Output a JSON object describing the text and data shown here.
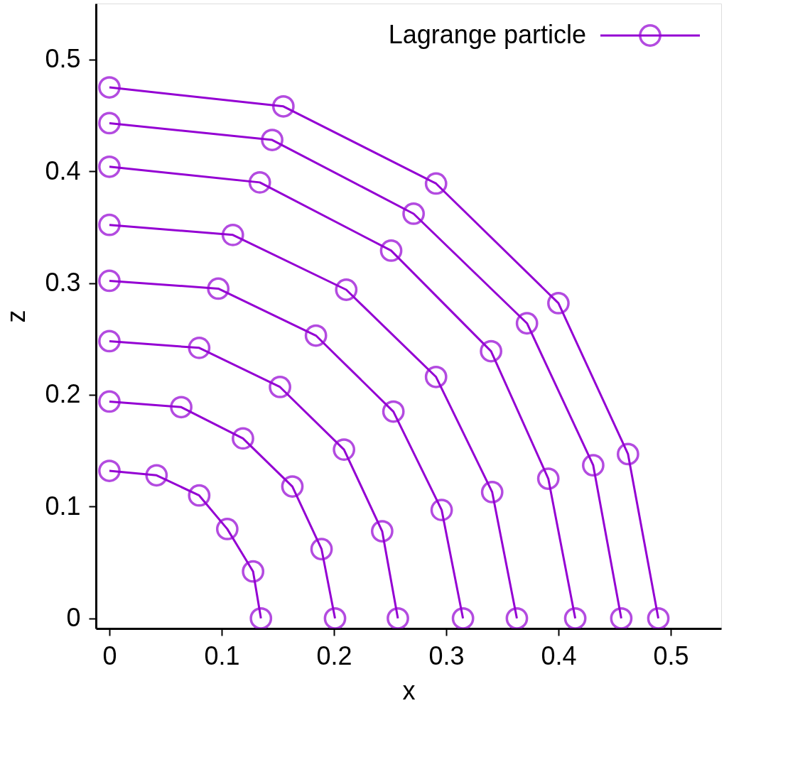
{
  "chart_data": {
    "type": "line",
    "xlabel": "x",
    "ylabel": "z",
    "xlim": [
      -0.012,
      0.545
    ],
    "ylim": [
      -0.009,
      0.55
    ],
    "xticks": [
      0,
      0.1,
      0.2,
      0.3,
      0.4,
      0.5
    ],
    "yticks": [
      0,
      0.1,
      0.2,
      0.3,
      0.4,
      0.5
    ],
    "grid": false,
    "legend": "top right",
    "marker": "circle",
    "line_style": "solid",
    "series": [
      {
        "name": "Lagrange particle",
        "color": "#9400d3",
        "x": [
          0,
          0.042,
          0.08,
          0.105,
          0.128,
          0.135
        ],
        "values": [
          0.132,
          0.128,
          0.11,
          0.08,
          0.042,
          0
        ]
      },
      {
        "color": "#9400d3",
        "x": [
          0,
          0.064,
          0.119,
          0.163,
          0.189,
          0.201
        ],
        "values": [
          0.194,
          0.189,
          0.161,
          0.118,
          0.062,
          0
        ]
      },
      {
        "color": "#9400d3",
        "x": [
          0,
          0.08,
          0.152,
          0.209,
          0.243,
          0.257
        ],
        "values": [
          0.248,
          0.242,
          0.207,
          0.151,
          0.078,
          0
        ]
      },
      {
        "color": "#9400d3",
        "x": [
          0,
          0.097,
          0.184,
          0.253,
          0.296,
          0.315
        ],
        "values": [
          0.302,
          0.295,
          0.253,
          0.185,
          0.097,
          0
        ]
      },
      {
        "color": "#9400d3",
        "x": [
          0,
          0.11,
          0.211,
          0.291,
          0.341,
          0.363
        ],
        "values": [
          0.352,
          0.343,
          0.294,
          0.216,
          0.113,
          0
        ]
      },
      {
        "color": "#9400d3",
        "x": [
          0,
          0.134,
          0.251,
          0.34,
          0.391,
          0.415
        ],
        "values": [
          0.404,
          0.39,
          0.329,
          0.239,
          0.125,
          0
        ]
      },
      {
        "color": "#9400d3",
        "x": [
          0,
          0.145,
          0.271,
          0.372,
          0.431,
          0.456
        ],
        "values": [
          0.443,
          0.428,
          0.362,
          0.264,
          0.137,
          0
        ]
      },
      {
        "color": "#9400d3",
        "x": [
          0,
          0.155,
          0.291,
          0.4,
          0.462,
          0.489
        ],
        "values": [
          0.475,
          0.458,
          0.389,
          0.282,
          0.147,
          0
        ]
      }
    ]
  }
}
